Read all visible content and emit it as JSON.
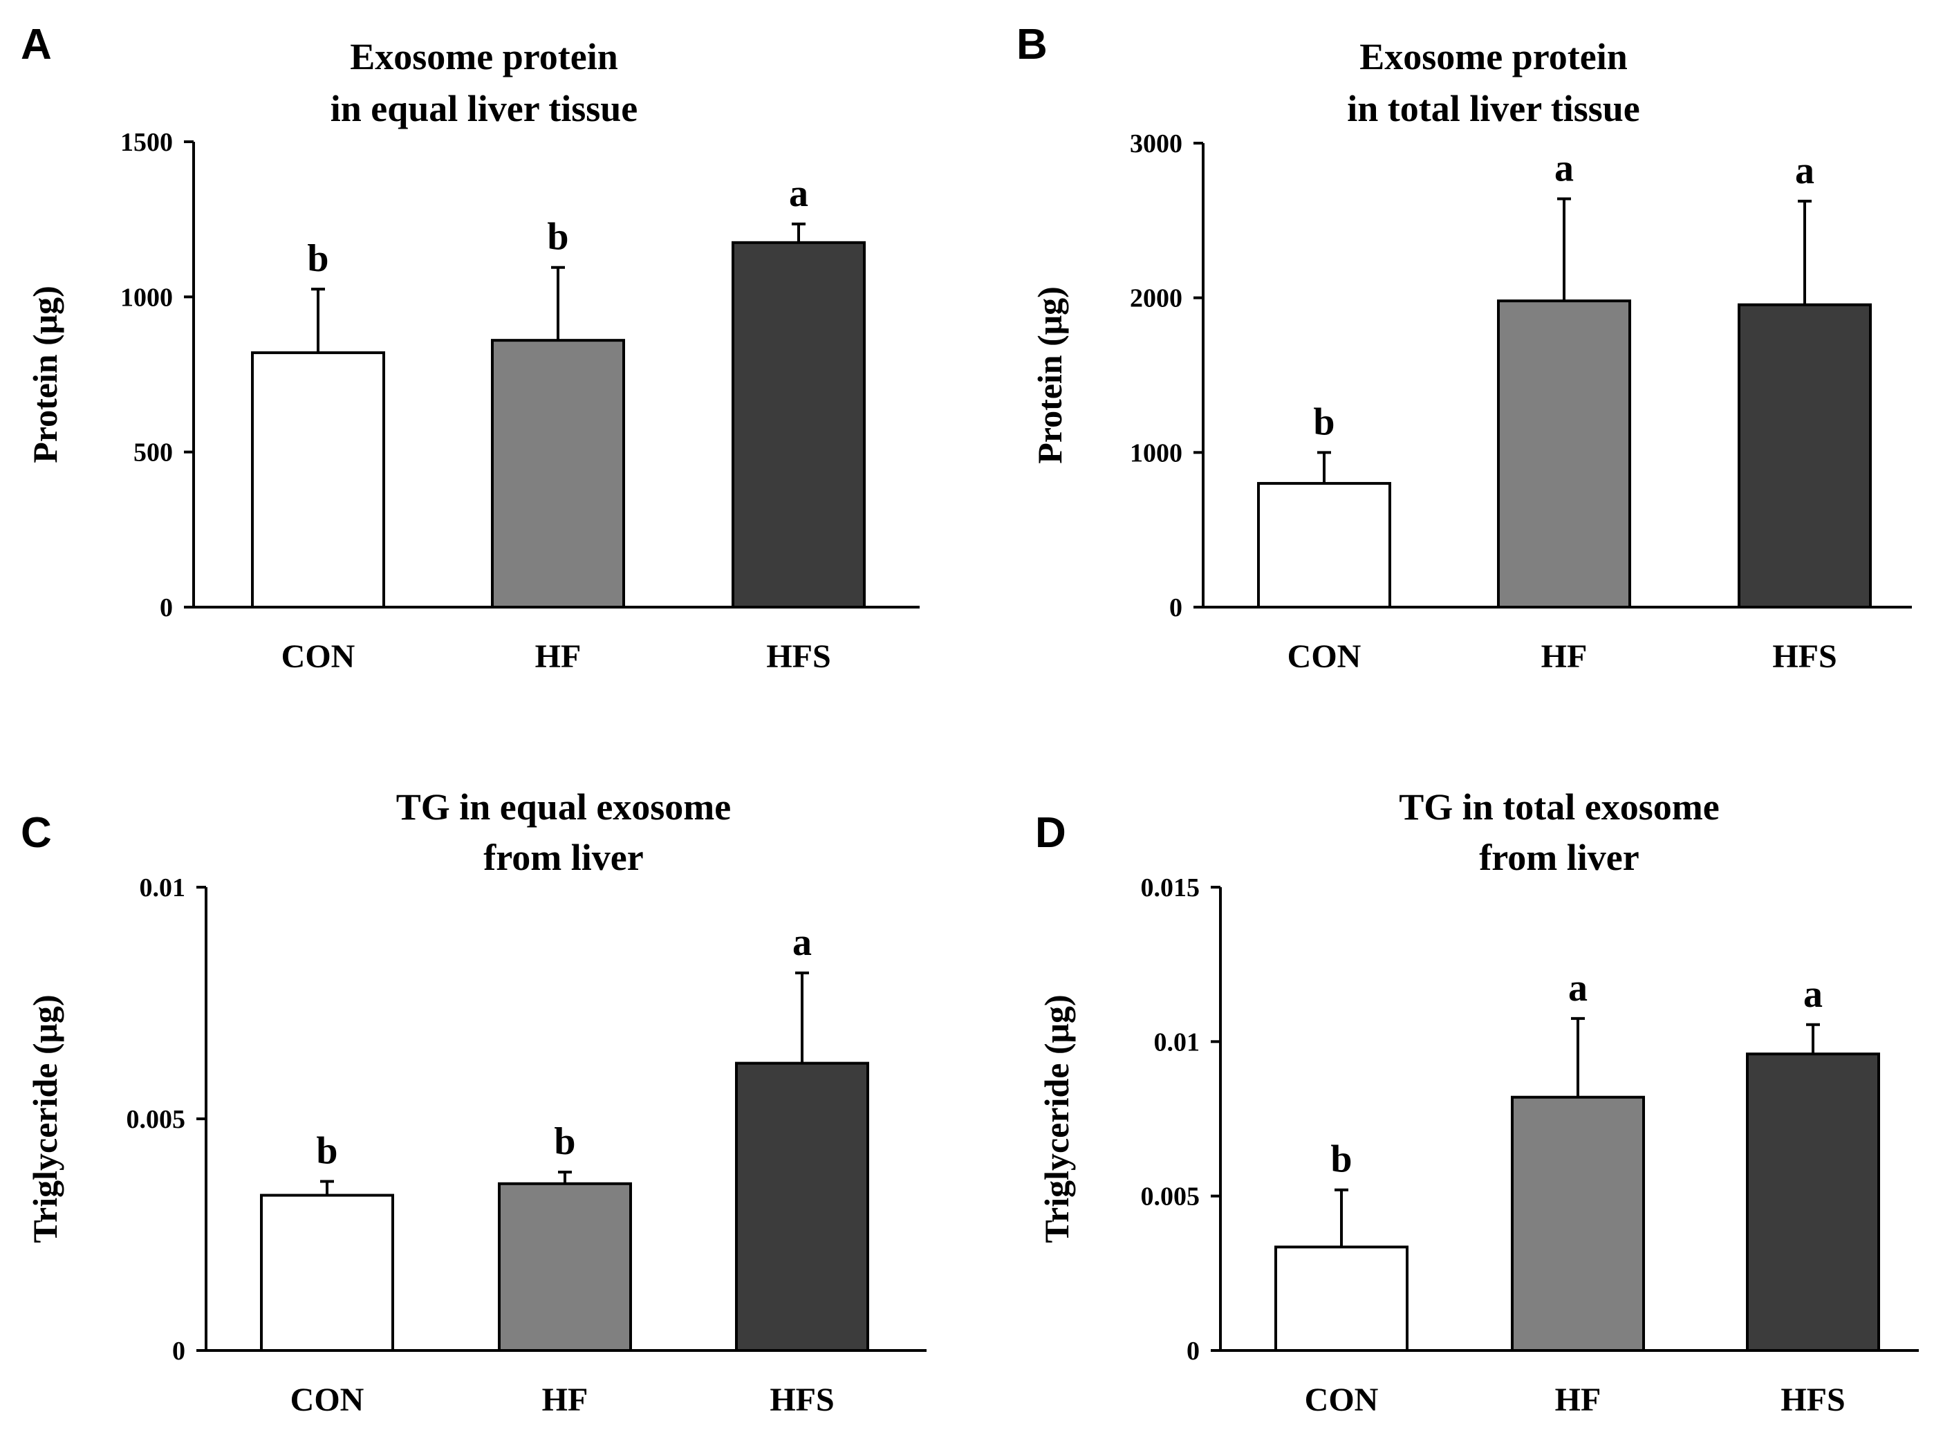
{
  "chart_data": [
    {
      "panel": "A",
      "type": "bar",
      "title": [
        "Exosome protein",
        "in equal liver tissue"
      ],
      "ylabel": "Protein (μg)",
      "categories": [
        "CON",
        "HF",
        "HFS"
      ],
      "values": [
        820,
        860,
        1175
      ],
      "errors": [
        205,
        235,
        60
      ],
      "significance": [
        "b",
        "b",
        "a"
      ],
      "ylim": [
        0,
        1500
      ],
      "yticks": [
        0,
        500,
        1000,
        1500
      ],
      "ytick_labels": [
        "0",
        "500",
        "1000",
        "1500"
      ],
      "bar_colors": [
        "#ffffff",
        "#808080",
        "#3c3c3c"
      ]
    },
    {
      "panel": "B",
      "type": "bar",
      "title": [
        "Exosome protein",
        "in total liver tissue"
      ],
      "ylabel": "Protein (μg)",
      "categories": [
        "CON",
        "HF",
        "HFS"
      ],
      "values": [
        800,
        1980,
        1955
      ],
      "errors": [
        200,
        660,
        670
      ],
      "significance": [
        "b",
        "a",
        "a"
      ],
      "ylim": [
        0,
        3000
      ],
      "yticks": [
        0,
        1000,
        2000,
        3000
      ],
      "ytick_labels": [
        "0",
        "1000",
        "2000",
        "3000"
      ],
      "bar_colors": [
        "#ffffff",
        "#808080",
        "#3c3c3c"
      ]
    },
    {
      "panel": "C",
      "type": "bar",
      "title": [
        "TG in equal exosome",
        "from liver"
      ],
      "ylabel": "Triglyceride (μg)",
      "categories": [
        "CON",
        "HF",
        "HFS"
      ],
      "values": [
        0.00335,
        0.0036,
        0.0062
      ],
      "errors": [
        0.0003,
        0.00025,
        0.00195
      ],
      "significance": [
        "b",
        "b",
        "a"
      ],
      "ylim": [
        0,
        0.01
      ],
      "yticks": [
        0,
        0.005,
        0.01
      ],
      "ytick_labels": [
        "0",
        "0.005",
        "0.01"
      ],
      "bar_colors": [
        "#ffffff",
        "#808080",
        "#3c3c3c"
      ]
    },
    {
      "panel": "D",
      "type": "bar",
      "title": [
        "TG in total exosome",
        "from liver"
      ],
      "ylabel": "Triglyceride (μg)",
      "categories": [
        "CON",
        "HF",
        "HFS"
      ],
      "values": [
        0.00335,
        0.0082,
        0.0096
      ],
      "errors": [
        0.00185,
        0.00255,
        0.00095
      ],
      "significance": [
        "b",
        "a",
        "a"
      ],
      "ylim": [
        0,
        0.015
      ],
      "yticks": [
        0,
        0.005,
        0.01,
        0.015
      ],
      "ytick_labels": [
        "0",
        "0.005",
        "0.01",
        "0.015"
      ],
      "bar_colors": [
        "#ffffff",
        "#808080",
        "#3c3c3c"
      ]
    }
  ]
}
